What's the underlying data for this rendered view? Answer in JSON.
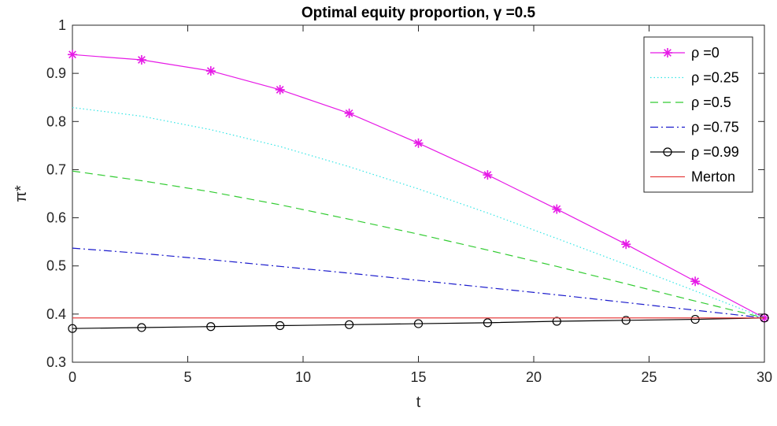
{
  "chart_data": {
    "type": "line",
    "title": "Optimal equity proportion, γ =0.5",
    "xlabel": "t",
    "ylabel": "π*",
    "xlim": [
      0,
      30
    ],
    "ylim": [
      0.3,
      1
    ],
    "xticks": [
      "0",
      "5",
      "10",
      "15",
      "20",
      "25",
      "30"
    ],
    "yticks": [
      "0.3",
      "0.4",
      "0.5",
      "0.6",
      "0.7",
      "0.8",
      "0.9",
      "1"
    ],
    "grid": false,
    "legend_position": "top-right",
    "x": [
      0,
      3,
      6,
      9,
      12,
      15,
      18,
      21,
      24,
      27,
      30
    ],
    "series": [
      {
        "name": "ρ =0",
        "color": "#e619e6",
        "line_style": "solid",
        "marker": "asterisk",
        "values": [
          0.939,
          0.928,
          0.905,
          0.866,
          0.817,
          0.755,
          0.689,
          0.618,
          0.545,
          0.468,
          0.392
        ]
      },
      {
        "name": "ρ =0.25",
        "color": "#33e6e6",
        "line_style": "dotted",
        "marker": "none",
        "values": [
          0.829,
          0.811,
          0.783,
          0.748,
          0.706,
          0.66,
          0.61,
          0.557,
          0.503,
          0.448,
          0.392
        ]
      },
      {
        "name": "ρ =0.5",
        "color": "#33cc33",
        "line_style": "dashed",
        "marker": "none",
        "values": [
          0.697,
          0.677,
          0.654,
          0.627,
          0.597,
          0.566,
          0.533,
          0.499,
          0.463,
          0.427,
          0.392
        ]
      },
      {
        "name": "ρ =0.75",
        "color": "#1a1acc",
        "line_style": "dashdot",
        "marker": "none",
        "values": [
          0.537,
          0.526,
          0.513,
          0.499,
          0.485,
          0.47,
          0.455,
          0.44,
          0.424,
          0.408,
          0.392
        ]
      },
      {
        "name": "ρ =0.99",
        "color": "#000000",
        "line_style": "solid",
        "marker": "circle",
        "values": [
          0.37,
          0.372,
          0.374,
          0.376,
          0.378,
          0.38,
          0.382,
          0.385,
          0.387,
          0.389,
          0.392
        ]
      },
      {
        "name": "Merton",
        "color": "#e64040",
        "line_style": "solid",
        "marker": "none",
        "values": [
          0.392,
          0.392,
          0.392,
          0.392,
          0.392,
          0.392,
          0.392,
          0.392,
          0.392,
          0.392,
          0.392
        ]
      }
    ]
  }
}
